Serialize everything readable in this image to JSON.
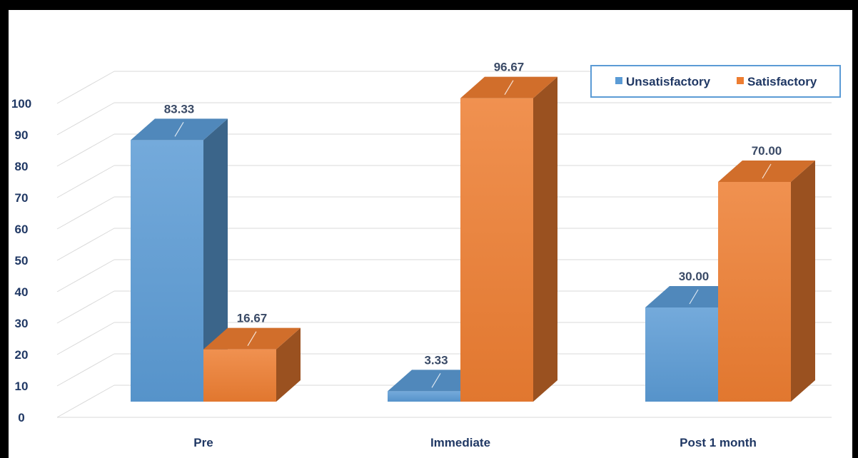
{
  "colors": {
    "unsatisfactory": "#5b9bd5",
    "satisfactory": "#ed7d31",
    "axis_text": "#203864",
    "legend_border": "#5b9bd5"
  },
  "chart_data": {
    "type": "bar",
    "categories": [
      "Pre",
      "Immediate",
      "Post 1 month"
    ],
    "series": [
      {
        "name": "Unsatisfactory",
        "values": [
          83.33,
          3.33,
          30.0
        ],
        "labels": [
          "83.33",
          "3.33",
          "30.00"
        ]
      },
      {
        "name": "Satisfactory",
        "values": [
          16.67,
          96.67,
          70.0
        ],
        "labels": [
          "16.67",
          "96.67",
          "70.00"
        ]
      }
    ],
    "yticks": [
      "0",
      "10",
      "20",
      "30",
      "40",
      "50",
      "60",
      "70",
      "80",
      "90",
      "100"
    ],
    "ylim": [
      0,
      100
    ],
    "grid": true,
    "three_d": true,
    "legend_position": "top-right"
  }
}
